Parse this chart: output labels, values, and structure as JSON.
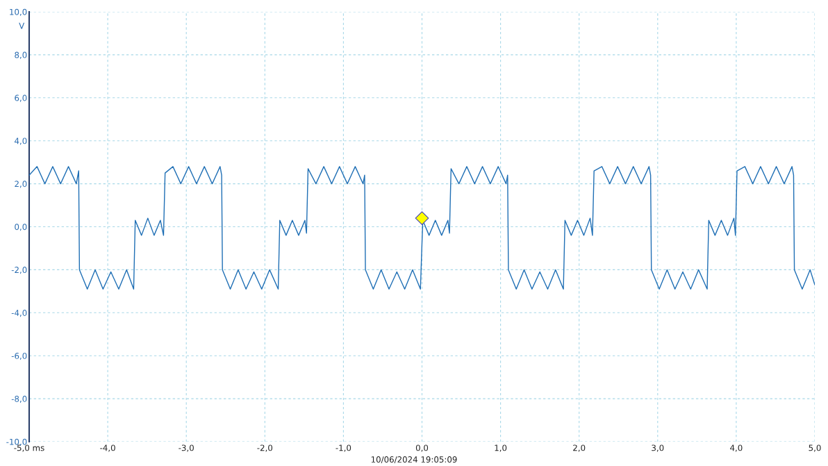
{
  "chart_data": {
    "type": "line",
    "ylabel": "V",
    "annotations": [
      "10/06/2024 19:05:09"
    ],
    "xlim": [
      -5,
      5
    ],
    "ylim": [
      -10,
      10
    ],
    "grid": true,
    "marker": "none",
    "line_style": "solid",
    "xticks": [
      {
        "value": -5,
        "label": "-5,0 ms"
      },
      {
        "value": -4,
        "label": "-4,0"
      },
      {
        "value": -3,
        "label": "-3,0"
      },
      {
        "value": -2,
        "label": "-2,0"
      },
      {
        "value": -1,
        "label": "-1,0"
      },
      {
        "value": 0,
        "label": "0,0"
      },
      {
        "value": 1,
        "label": "1,0"
      },
      {
        "value": 2,
        "label": "2,0"
      },
      {
        "value": 3,
        "label": "3,0"
      },
      {
        "value": 4,
        "label": "4,0"
      },
      {
        "value": 5,
        "label": "5,0"
      }
    ],
    "yticks": [
      {
        "value": -10,
        "label": "-10,0"
      },
      {
        "value": -8,
        "label": "-8,0"
      },
      {
        "value": -6,
        "label": "-6,0"
      },
      {
        "value": -4,
        "label": "-4,0"
      },
      {
        "value": -2,
        "label": "-2,0"
      },
      {
        "value": 0,
        "label": "0,0"
      },
      {
        "value": 2,
        "label": "2,0"
      },
      {
        "value": 4,
        "label": "4,0"
      },
      {
        "value": 6,
        "label": "6,0"
      },
      {
        "value": 8,
        "label": "8,0"
      },
      {
        "value": 10,
        "label": "10,0"
      }
    ],
    "series": [
      {
        "color": "#1f6fb5",
        "x": [
          -5.0,
          -4.9,
          -4.8,
          -4.7,
          -4.6,
          -4.5,
          -4.4,
          -4.37,
          -4.36,
          -4.26,
          -4.16,
          -4.06,
          -3.96,
          -3.86,
          -3.76,
          -3.67,
          -3.65,
          -3.57,
          -3.49,
          -3.41,
          -3.33,
          -3.29,
          -3.27,
          -3.17,
          -3.07,
          -2.97,
          -2.87,
          -2.77,
          -2.67,
          -2.57,
          -2.55,
          -2.54,
          -2.44,
          -2.34,
          -2.24,
          -2.14,
          -2.04,
          -1.94,
          -1.83,
          -1.81,
          -1.73,
          -1.65,
          -1.57,
          -1.49,
          -1.47,
          -1.45,
          -1.35,
          -1.25,
          -1.15,
          -1.05,
          -0.95,
          -0.85,
          -0.75,
          -0.73,
          -0.72,
          -0.62,
          -0.52,
          -0.42,
          -0.32,
          -0.22,
          -0.12,
          -0.02,
          0.01,
          0.09,
          0.17,
          0.25,
          0.33,
          0.35,
          0.37,
          0.47,
          0.57,
          0.67,
          0.77,
          0.87,
          0.97,
          1.07,
          1.09,
          1.1,
          1.2,
          1.3,
          1.4,
          1.5,
          1.6,
          1.7,
          1.8,
          1.82,
          1.9,
          1.98,
          2.06,
          2.14,
          2.17,
          2.19,
          2.29,
          2.39,
          2.49,
          2.59,
          2.69,
          2.79,
          2.89,
          2.91,
          2.92,
          3.02,
          3.12,
          3.22,
          3.32,
          3.42,
          3.52,
          3.63,
          3.65,
          3.73,
          3.81,
          3.89,
          3.97,
          3.99,
          4.01,
          4.11,
          4.21,
          4.31,
          4.41,
          4.51,
          4.61,
          4.71,
          4.73,
          4.74,
          4.84,
          4.94,
          5.0
        ],
        "values": [
          2.4,
          2.8,
          2.0,
          2.8,
          2.0,
          2.8,
          2.0,
          2.6,
          -2.0,
          -2.9,
          -2.0,
          -2.9,
          -2.1,
          -2.9,
          -2.0,
          -2.9,
          0.3,
          -0.4,
          0.4,
          -0.4,
          0.3,
          -0.4,
          2.5,
          2.8,
          2.0,
          2.8,
          2.0,
          2.8,
          2.0,
          2.8,
          2.4,
          -2.0,
          -2.9,
          -2.0,
          -2.9,
          -2.1,
          -2.9,
          -2.0,
          -2.9,
          0.3,
          -0.4,
          0.3,
          -0.4,
          0.3,
          -0.3,
          2.7,
          2.0,
          2.8,
          2.0,
          2.8,
          2.0,
          2.8,
          2.0,
          2.4,
          -2.0,
          -2.9,
          -2.0,
          -2.9,
          -2.1,
          -2.9,
          -2.0,
          -2.9,
          0.3,
          -0.4,
          0.3,
          -0.4,
          0.3,
          -0.3,
          2.7,
          2.0,
          2.8,
          2.0,
          2.8,
          2.0,
          2.8,
          2.0,
          2.4,
          -2.0,
          -2.9,
          -2.0,
          -2.9,
          -2.1,
          -2.9,
          -2.0,
          -2.9,
          0.3,
          -0.4,
          0.3,
          -0.4,
          0.4,
          -0.4,
          2.6,
          2.8,
          2.0,
          2.8,
          2.0,
          2.8,
          2.0,
          2.8,
          2.4,
          -2.0,
          -2.9,
          -2.0,
          -2.9,
          -2.1,
          -2.9,
          -2.0,
          -2.9,
          0.3,
          -0.4,
          0.3,
          -0.4,
          0.4,
          -0.4,
          2.6,
          2.8,
          2.0,
          2.8,
          2.0,
          2.8,
          2.0,
          2.8,
          2.4,
          -2.0,
          -2.9,
          -2.0,
          -2.7
        ]
      },
      {
        "type": "scatter",
        "color": "#ffff00",
        "marker": "diamond",
        "x": [
          0
        ],
        "values": [
          0.4
        ]
      }
    ]
  }
}
